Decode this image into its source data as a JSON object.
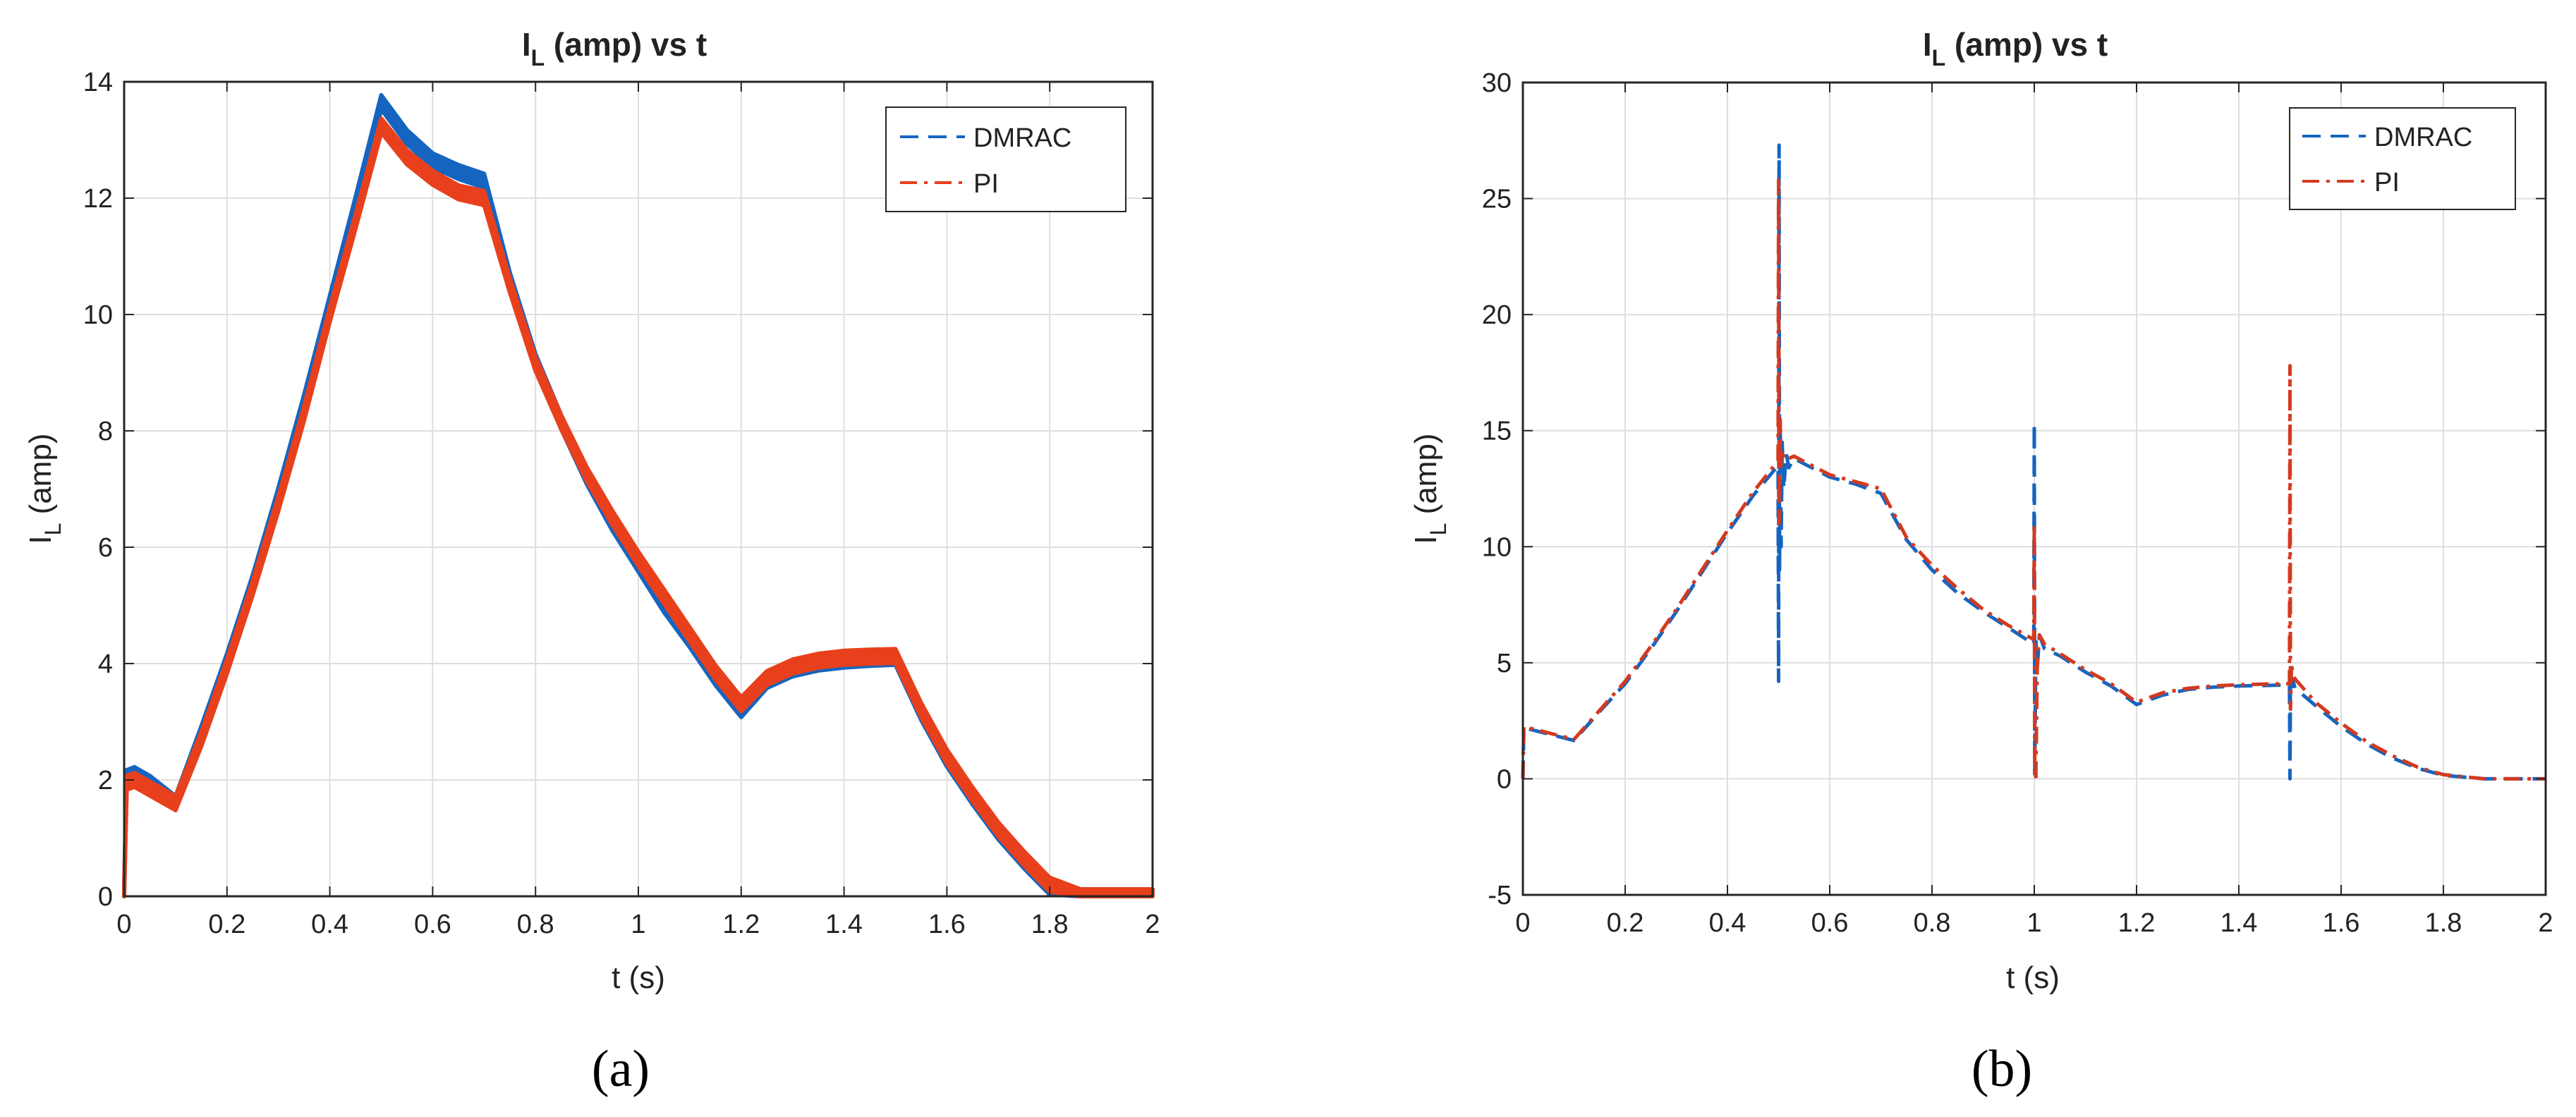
{
  "chart_data": [
    {
      "type": "line",
      "panel_label": "(a)",
      "title_main": "I",
      "title_sub": "L",
      "title_rest": " (amp) vs t",
      "xlabel": "t (s)",
      "ylabel_main": "I",
      "ylabel_sub": "L",
      "ylabel_rest": " (amp)",
      "xlim": [
        0,
        2
      ],
      "ylim": [
        0,
        14
      ],
      "xticks": [
        0,
        0.2,
        0.4,
        0.6,
        0.8,
        1,
        1.2,
        1.4,
        1.6,
        1.8,
        2
      ],
      "xtick_labels": [
        "0",
        "0.2",
        "0.4",
        "0.6",
        "0.8",
        "1",
        "1.2",
        "1.4",
        "1.6",
        "1.8",
        "2"
      ],
      "yticks": [
        0,
        2,
        4,
        6,
        8,
        10,
        12,
        14
      ],
      "ytick_labels": [
        "0",
        "2",
        "4",
        "6",
        "8",
        "10",
        "12",
        "14"
      ],
      "grid": true,
      "legend_position": "top-right",
      "series": [
        {
          "name": "DMRAC",
          "color": "#1565C0",
          "style": "dashed",
          "x": [
            0,
            0.005,
            0.02,
            0.05,
            0.1,
            0.15,
            0.2,
            0.25,
            0.3,
            0.35,
            0.4,
            0.45,
            0.5,
            0.55,
            0.6,
            0.65,
            0.7,
            0.75,
            0.8,
            0.85,
            0.9,
            0.95,
            1.0,
            1.05,
            1.1,
            1.15,
            1.2,
            1.25,
            1.3,
            1.35,
            1.4,
            1.45,
            1.5,
            1.55,
            1.6,
            1.65,
            1.7,
            1.75,
            1.8,
            1.86,
            1.9,
            2.0
          ],
          "y": [
            0,
            2.05,
            2.1,
            1.95,
            1.6,
            2.8,
            4.05,
            5.4,
            6.9,
            8.5,
            10.2,
            11.9,
            13.65,
            13.05,
            12.65,
            12.45,
            12.3,
            10.6,
            9.2,
            8.15,
            7.2,
            6.4,
            5.7,
            5.0,
            4.4,
            3.75,
            3.2,
            3.7,
            3.9,
            4.0,
            4.05,
            4.08,
            4.1,
            3.15,
            2.35,
            1.7,
            1.1,
            0.6,
            0.15,
            0,
            0,
            0
          ],
          "band": 0.12
        },
        {
          "name": "PI",
          "color": "#E8401C",
          "style": "dashdot",
          "x": [
            0,
            0.005,
            0.02,
            0.05,
            0.1,
            0.15,
            0.2,
            0.25,
            0.3,
            0.35,
            0.4,
            0.45,
            0.5,
            0.55,
            0.6,
            0.65,
            0.7,
            0.75,
            0.8,
            0.85,
            0.9,
            0.95,
            1.0,
            1.05,
            1.1,
            1.15,
            1.2,
            1.25,
            1.3,
            1.35,
            1.4,
            1.45,
            1.5,
            1.55,
            1.6,
            1.65,
            1.7,
            1.75,
            1.8,
            1.86,
            1.9,
            2.0
          ],
          "y": [
            0,
            1.95,
            2.0,
            1.85,
            1.6,
            2.7,
            3.95,
            5.3,
            6.75,
            8.3,
            10.0,
            11.6,
            13.25,
            12.7,
            12.35,
            12.1,
            12.0,
            10.5,
            9.15,
            8.15,
            7.25,
            6.5,
            5.8,
            5.15,
            4.5,
            3.85,
            3.3,
            3.75,
            3.95,
            4.05,
            4.1,
            4.12,
            4.13,
            3.2,
            2.4,
            1.75,
            1.15,
            0.65,
            0.2,
            0,
            0,
            0
          ],
          "band": 0.12
        }
      ]
    },
    {
      "type": "line",
      "panel_label": "(b)",
      "title_main": "I",
      "title_sub": "L",
      "title_rest": " (amp) vs t",
      "xlabel": "t (s)",
      "ylabel_main": "I",
      "ylabel_sub": "L",
      "ylabel_rest": " (amp)",
      "xlim": [
        0,
        2
      ],
      "ylim": [
        -5,
        30
      ],
      "xticks": [
        0,
        0.2,
        0.4,
        0.6,
        0.8,
        1,
        1.2,
        1.4,
        1.6,
        1.8,
        2
      ],
      "xtick_labels": [
        "0",
        "0.2",
        "0.4",
        "0.6",
        "0.8",
        "1",
        "1.2",
        "1.4",
        "1.6",
        "1.8",
        "2"
      ],
      "yticks": [
        -5,
        0,
        5,
        10,
        15,
        20,
        25,
        30
      ],
      "ytick_labels": [
        "-5",
        "0",
        "5",
        "10",
        "15",
        "20",
        "25",
        "30"
      ],
      "grid": true,
      "legend_position": "top-right",
      "series": [
        {
          "name": "DMRAC",
          "color": "#1565C0",
          "style": "dashed",
          "x": [
            0,
            0.002,
            0.1,
            0.15,
            0.2,
            0.25,
            0.3,
            0.35,
            0.4,
            0.45,
            0.499,
            0.5,
            0.501,
            0.502,
            0.503,
            0.505,
            0.507,
            0.51,
            0.515,
            0.52,
            0.53,
            0.6,
            0.65,
            0.7,
            0.75,
            0.8,
            0.85,
            0.9,
            0.95,
            0.999,
            1.0,
            1.001,
            1.003,
            1.006,
            1.01,
            1.02,
            1.05,
            1.1,
            1.15,
            1.2,
            1.25,
            1.3,
            1.35,
            1.4,
            1.45,
            1.499,
            1.5,
            1.501,
            1.502,
            1.505,
            1.51,
            1.55,
            1.6,
            1.65,
            1.7,
            1.75,
            1.8,
            1.88,
            2.0
          ],
          "y": [
            0,
            2.2,
            1.65,
            2.9,
            4.1,
            5.6,
            7.2,
            8.9,
            10.6,
            12.2,
            13.5,
            4.2,
            27.3,
            9.0,
            15.5,
            10.0,
            14.5,
            12.5,
            14.0,
            13.4,
            13.8,
            13.0,
            12.7,
            12.3,
            10.3,
            9.0,
            8.0,
            7.2,
            6.5,
            5.8,
            15.3,
            0.2,
            6.0,
            4.8,
            6.2,
            5.6,
            5.3,
            4.6,
            4.0,
            3.2,
            3.6,
            3.85,
            3.95,
            4.0,
            4.02,
            4.05,
            0.0,
            4.7,
            3.8,
            4.3,
            3.9,
            3.15,
            2.25,
            1.5,
            0.9,
            0.45,
            0.15,
            0,
            0
          ]
        },
        {
          "name": "PI",
          "color": "#D33A20",
          "style": "dashdot",
          "x": [
            0,
            0.002,
            0.1,
            0.15,
            0.2,
            0.25,
            0.3,
            0.35,
            0.4,
            0.45,
            0.499,
            0.5,
            0.501,
            0.503,
            0.505,
            0.51,
            0.52,
            0.53,
            0.6,
            0.65,
            0.7,
            0.75,
            0.8,
            0.85,
            0.9,
            0.95,
            0.999,
            1.0,
            1.001,
            1.003,
            1.006,
            1.01,
            1.02,
            1.05,
            1.1,
            1.15,
            1.2,
            1.25,
            1.3,
            1.35,
            1.4,
            1.45,
            1.499,
            1.5,
            1.501,
            1.503,
            1.505,
            1.51,
            1.55,
            1.6,
            1.65,
            1.7,
            1.75,
            1.8,
            1.88,
            2.0
          ],
          "y": [
            0,
            2.25,
            1.7,
            2.95,
            4.2,
            5.7,
            7.3,
            9.0,
            10.7,
            12.35,
            13.7,
            25.8,
            11.0,
            15.5,
            13.5,
            14.0,
            13.8,
            13.9,
            13.1,
            12.8,
            12.5,
            10.4,
            9.2,
            8.2,
            7.3,
            6.6,
            6.0,
            11.0,
            0.0,
            0.0,
            5.0,
            6.2,
            5.8,
            5.4,
            4.7,
            4.1,
            3.3,
            3.7,
            3.9,
            4.0,
            4.05,
            4.08,
            4.1,
            17.8,
            3.0,
            5.0,
            4.6,
            4.3,
            3.3,
            2.4,
            1.6,
            1.0,
            0.5,
            0.18,
            0,
            0
          ]
        }
      ]
    }
  ]
}
